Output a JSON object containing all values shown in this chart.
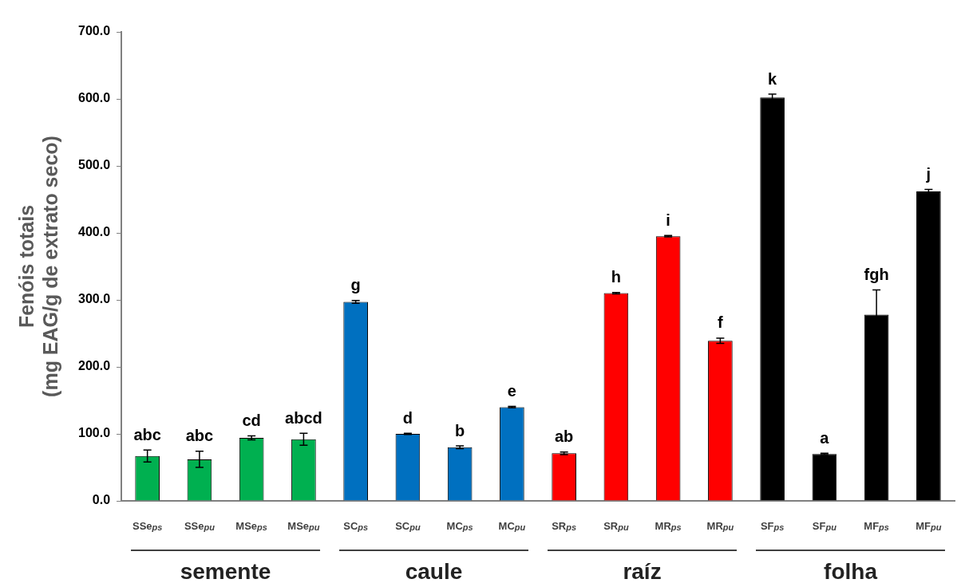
{
  "chart_data": {
    "type": "bar",
    "ylabel": "Fenóis totais\n(mg EAG/g de extrato seco)",
    "categories": [
      "SSe$_{ps}$",
      "SSe$_{pu}$",
      "MSe$_{ps}$",
      "MSe$_{pu}$",
      "SC$_{ps}$",
      "SC$_{pu}$",
      "MC$_{ps}$",
      "MC$_{pu}$",
      "SR$_{ps}$",
      "SR$_{pu}$",
      "MR$_{ps}$",
      "MR$_{pu}$",
      "SF$_{ps}$",
      "SF$_{pu}$",
      "MF$_{ps}$",
      "MF$_{pu}$"
    ],
    "values": [
      67,
      62,
      94,
      92,
      297,
      100,
      80,
      140,
      71,
      310,
      395,
      239,
      602,
      70,
      278,
      462
    ],
    "errors": [
      9,
      12,
      3,
      9,
      2,
      1,
      2,
      1,
      2,
      1,
      1,
      4,
      5,
      1,
      37,
      3
    ],
    "colors": [
      "#00b050",
      "#00b050",
      "#00b050",
      "#00b050",
      "#0070c0",
      "#0070c0",
      "#0070c0",
      "#0070c0",
      "#ff0000",
      "#ff0000",
      "#ff0000",
      "#ff0000",
      "#000000",
      "#000000",
      "#000000",
      "#000000"
    ],
    "value_labels": [
      "abc",
      "abc",
      "cd",
      "abcd",
      "g",
      "d",
      "b",
      "e",
      "ab",
      "h",
      "i",
      "f",
      "k",
      "a",
      "fgh",
      "j"
    ],
    "annotations": [
      "semente",
      "caule",
      "raíz",
      "folha"
    ],
    "ylim": [
      0,
      700
    ],
    "yticks": [
      {
        "value": 0,
        "label": "0.0"
      },
      {
        "value": 100,
        "label": "100.0"
      },
      {
        "value": 200,
        "label": "200.0"
      },
      {
        "value": 300,
        "label": "300.0"
      },
      {
        "value": 400,
        "label": "400.0"
      },
      {
        "value": 500,
        "label": "500.0"
      },
      {
        "value": 600,
        "label": "600.0"
      },
      {
        "value": 700,
        "label": "700.0"
      }
    ],
    "grid": false,
    "legend": false
  }
}
